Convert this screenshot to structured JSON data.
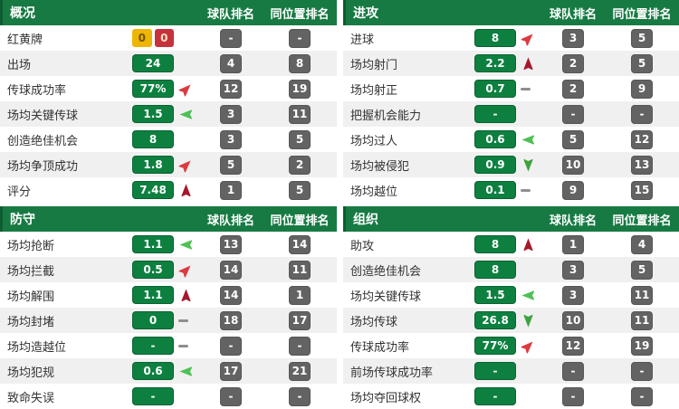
{
  "colors": {
    "header_green": "#177a43",
    "header_border": "#0d5c31",
    "value_green": "#0d8040",
    "value_border": "#0a6232",
    "rank_gray": "#636363",
    "rank_border": "#565656",
    "stripe": "#f0f0f0",
    "text": "#333333",
    "trend_up": "#a6182b",
    "trend_up_right": "#dc3a40",
    "trend_left": "#4fc055",
    "trend_down": "#3da33d",
    "trend_flat": "#8f8f8f",
    "yellow_card_bg": "#eeb502",
    "yellow_card_text": "#6f5500",
    "red_card_bg": "#c5323b",
    "red_card_text": "#f6e2c0"
  },
  "sections": [
    {
      "title": "概况",
      "columns": {
        "team_rank": "球队排名",
        "position_rank": "同位置排名"
      },
      "rows": [
        {
          "label": "红黄牌",
          "cards": {
            "yellow": "0",
            "red": "0"
          },
          "trend": null,
          "team": "-",
          "pos": "-"
        },
        {
          "label": "出场",
          "value": "24",
          "trend": null,
          "team": "4",
          "pos": "8"
        },
        {
          "label": "传球成功率",
          "value": "77%",
          "trend": "up-right",
          "team": "12",
          "pos": "19"
        },
        {
          "label": "场均关键传球",
          "value": "1.5",
          "trend": "left",
          "team": "3",
          "pos": "11"
        },
        {
          "label": "创造绝佳机会",
          "value": "8",
          "trend": null,
          "team": "3",
          "pos": "5"
        },
        {
          "label": "场均争顶成功",
          "value": "1.8",
          "trend": "up-right",
          "team": "5",
          "pos": "2"
        },
        {
          "label": "评分",
          "value": "7.48",
          "trend": "up",
          "team": "1",
          "pos": "5"
        }
      ]
    },
    {
      "title": "进攻",
      "columns": {
        "team_rank": "球队排名",
        "position_rank": "同位置排名"
      },
      "rows": [
        {
          "label": "进球",
          "value": "8",
          "trend": "up-right",
          "team": "3",
          "pos": "5"
        },
        {
          "label": "场均射门",
          "value": "2.2",
          "trend": "up",
          "team": "2",
          "pos": "5"
        },
        {
          "label": "场均射正",
          "value": "0.7",
          "trend": "flat",
          "team": "2",
          "pos": "9"
        },
        {
          "label": "把握机会能力",
          "value": "-",
          "trend": null,
          "team": "-",
          "pos": "-"
        },
        {
          "label": "场均过人",
          "value": "0.6",
          "trend": "left",
          "team": "5",
          "pos": "12"
        },
        {
          "label": "场均被侵犯",
          "value": "0.9",
          "trend": "down",
          "team": "10",
          "pos": "13"
        },
        {
          "label": "场均越位",
          "value": "0.1",
          "trend": "flat",
          "team": "9",
          "pos": "15"
        }
      ]
    },
    {
      "title": "防守",
      "columns": {
        "team_rank": "球队排名",
        "position_rank": "同位置排名"
      },
      "rows": [
        {
          "label": "场均抢断",
          "value": "1.1",
          "trend": "left",
          "team": "13",
          "pos": "14"
        },
        {
          "label": "场均拦截",
          "value": "0.5",
          "trend": "up-right",
          "team": "14",
          "pos": "11"
        },
        {
          "label": "场均解围",
          "value": "1.1",
          "trend": "up",
          "team": "14",
          "pos": "1"
        },
        {
          "label": "场均封堵",
          "value": "0",
          "trend": "flat",
          "team": "18",
          "pos": "17"
        },
        {
          "label": "场均造越位",
          "value": "-",
          "trend": "flat",
          "team": "-",
          "pos": "-"
        },
        {
          "label": "场均犯规",
          "value": "0.6",
          "trend": "left",
          "team": "17",
          "pos": "21"
        },
        {
          "label": "致命失误",
          "value": "-",
          "trend": null,
          "team": "-",
          "pos": "-"
        }
      ]
    },
    {
      "title": "组织",
      "columns": {
        "team_rank": "球队排名",
        "position_rank": "同位置排名"
      },
      "rows": [
        {
          "label": "助攻",
          "value": "8",
          "trend": "up",
          "team": "1",
          "pos": "4"
        },
        {
          "label": "创造绝佳机会",
          "value": "8",
          "trend": null,
          "team": "3",
          "pos": "5"
        },
        {
          "label": "场均关键传球",
          "value": "1.5",
          "trend": "left",
          "team": "3",
          "pos": "11"
        },
        {
          "label": "场均传球",
          "value": "26.8",
          "trend": "down",
          "team": "10",
          "pos": "11"
        },
        {
          "label": "传球成功率",
          "value": "77%",
          "trend": "up-right",
          "team": "12",
          "pos": "19"
        },
        {
          "label": "前场传球成功率",
          "value": "-",
          "trend": null,
          "team": "-",
          "pos": "-"
        },
        {
          "label": "场均夺回球权",
          "value": "-",
          "trend": null,
          "team": "-",
          "pos": "-"
        }
      ]
    }
  ]
}
